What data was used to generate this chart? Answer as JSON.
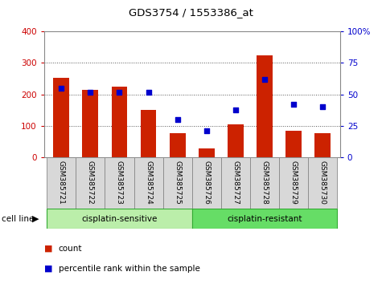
{
  "title": "GDS3754 / 1553386_at",
  "samples": [
    "GSM385721",
    "GSM385722",
    "GSM385723",
    "GSM385724",
    "GSM385725",
    "GSM385726",
    "GSM385727",
    "GSM385728",
    "GSM385729",
    "GSM385730"
  ],
  "counts": [
    253,
    215,
    225,
    150,
    78,
    28,
    105,
    323,
    85,
    78
  ],
  "percentiles": [
    55,
    52,
    52,
    52,
    30,
    21,
    38,
    62,
    42,
    40
  ],
  "left_ylim": [
    0,
    400
  ],
  "right_ylim": [
    0,
    100
  ],
  "left_yticks": [
    0,
    100,
    200,
    300,
    400
  ],
  "right_yticks": [
    0,
    25,
    50,
    75,
    100
  ],
  "right_yticklabels": [
    "0",
    "25",
    "50",
    "75",
    "100%"
  ],
  "left_ytick_color": "#cc0000",
  "right_ytick_color": "#0000cc",
  "bar_color": "#cc2200",
  "dot_color": "#0000cc",
  "group1_label": "cisplatin-sensitive",
  "group2_label": "cisplatin-resistant",
  "group_light_color": "#bbeeaa",
  "group_dark_color": "#66dd66",
  "cell_line_label": "cell line",
  "legend_count_label": "count",
  "legend_pct_label": "percentile rank within the sample",
  "grid_color": "#555555",
  "background_color": "#ffffff",
  "label_box_color": "#d8d8d8",
  "label_box_edge": "#888888"
}
